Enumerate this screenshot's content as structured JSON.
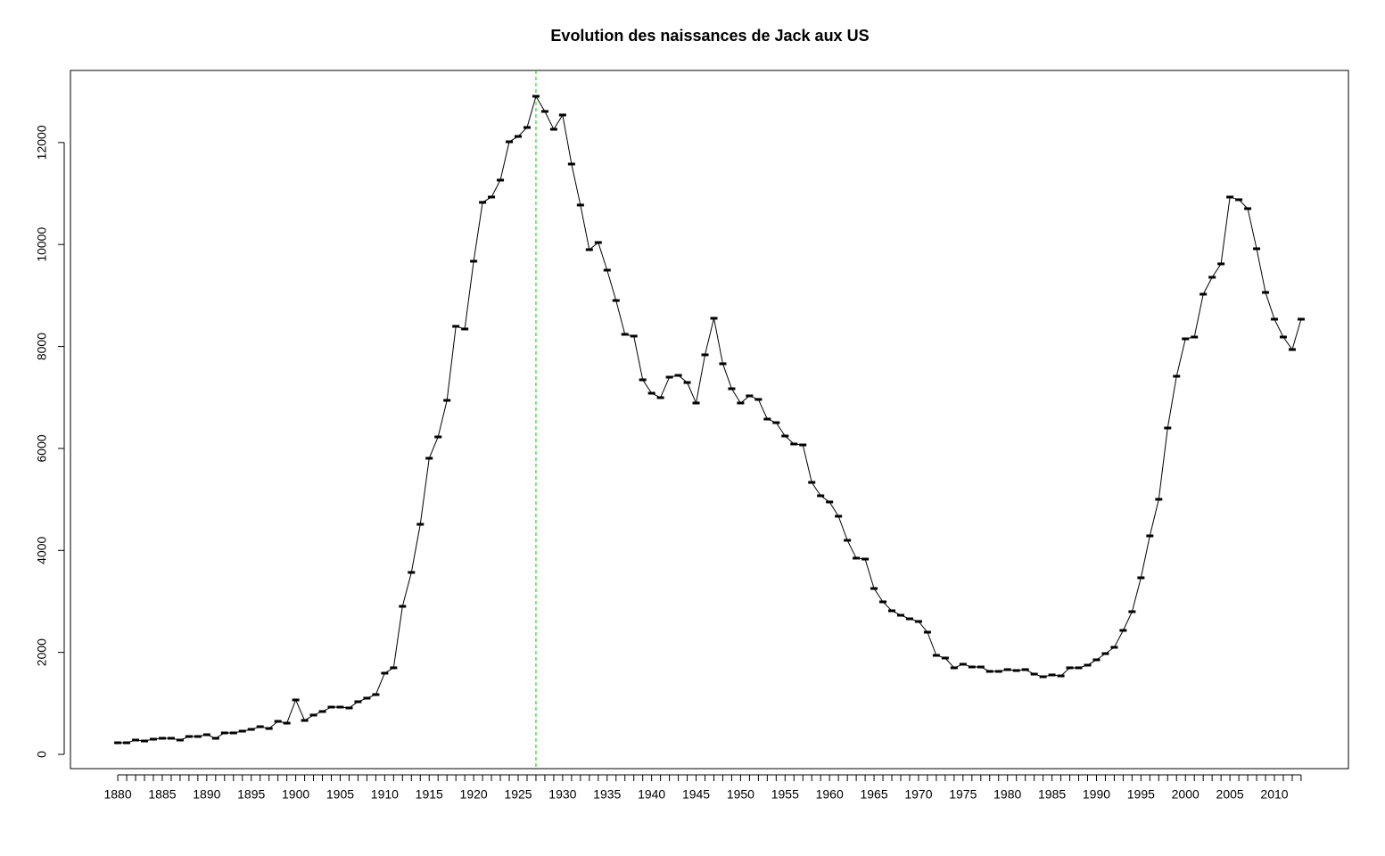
{
  "chart_data": {
    "type": "line",
    "title": "Evolution des naissances de Jack aux US",
    "x": [
      1880,
      1881,
      1882,
      1883,
      1884,
      1885,
      1886,
      1887,
      1888,
      1889,
      1890,
      1891,
      1892,
      1893,
      1894,
      1895,
      1896,
      1897,
      1898,
      1899,
      1900,
      1901,
      1902,
      1903,
      1904,
      1905,
      1906,
      1907,
      1908,
      1909,
      1910,
      1911,
      1912,
      1913,
      1914,
      1915,
      1916,
      1917,
      1918,
      1919,
      1920,
      1921,
      1922,
      1923,
      1924,
      1925,
      1926,
      1927,
      1928,
      1929,
      1930,
      1931,
      1932,
      1933,
      1934,
      1935,
      1936,
      1937,
      1938,
      1939,
      1940,
      1941,
      1942,
      1943,
      1944,
      1945,
      1946,
      1947,
      1948,
      1949,
      1950,
      1951,
      1952,
      1953,
      1954,
      1955,
      1956,
      1957,
      1958,
      1959,
      1960,
      1961,
      1962,
      1963,
      1964,
      1965,
      1966,
      1967,
      1968,
      1969,
      1970,
      1971,
      1972,
      1973,
      1974,
      1975,
      1976,
      1977,
      1978,
      1979,
      1980,
      1981,
      1982,
      1983,
      1984,
      1985,
      1986,
      1987,
      1988,
      1989,
      1990,
      1991,
      1992,
      1993,
      1994,
      1995,
      1996,
      1997,
      1998,
      1999,
      2000,
      2001,
      2002,
      2003,
      2004,
      2005,
      2006,
      2007,
      2008,
      2009,
      2010,
      2011,
      2012,
      2013
    ],
    "values": [
      227,
      227,
      280,
      262,
      297,
      315,
      315,
      280,
      350,
      350,
      385,
      315,
      420,
      420,
      455,
      490,
      542,
      507,
      647,
      612,
      1067,
      665,
      770,
      840,
      927,
      927,
      910,
      1032,
      1102,
      1172,
      1592,
      1697,
      2903,
      3568,
      4512,
      5807,
      6226,
      6943,
      8395,
      8343,
      9672,
      10826,
      10931,
      11263,
      12015,
      12120,
      12295,
      12907,
      12610,
      12260,
      12540,
      11578,
      10774,
      9899,
      10039,
      9497,
      8902,
      8238,
      8203,
      7346,
      7083,
      6996,
      7398,
      7433,
      7293,
      6891,
      7836,
      8553,
      7661,
      7171,
      6891,
      7031,
      6961,
      6576,
      6506,
      6244,
      6087,
      6069,
      5334,
      5072,
      4950,
      4670,
      4198,
      3848,
      3830,
      3253,
      2991,
      2816,
      2728,
      2658,
      2606,
      2396,
      1941,
      1889,
      1697,
      1767,
      1714,
      1714,
      1627,
      1627,
      1662,
      1644,
      1662,
      1574,
      1522,
      1557,
      1539,
      1697,
      1697,
      1749,
      1854,
      1976,
      2099,
      2431,
      2798,
      3463,
      4285,
      5002,
      6401,
      7416,
      8150,
      8185,
      9025,
      9357,
      9620,
      10931,
      10879,
      10704,
      9917,
      9060,
      8535,
      8185,
      7940,
      8535
    ],
    "color": "#000000",
    "xlim": [
      1874.68,
      2018.32
    ],
    "xticks": [
      1880,
      1885,
      1890,
      1895,
      1900,
      1905,
      1910,
      1915,
      1920,
      1925,
      1930,
      1935,
      1940,
      1945,
      1950,
      1955,
      1960,
      1965,
      1970,
      1975,
      1980,
      1985,
      1990,
      1995,
      2000,
      2005,
      2010
    ],
    "ylim": [
      -280,
      13414
    ],
    "yticks": [
      0,
      2000,
      4000,
      6000,
      8000,
      10000,
      12000
    ],
    "vline": {
      "x": 1927,
      "color": "#00cc00",
      "style": "dashed"
    }
  }
}
